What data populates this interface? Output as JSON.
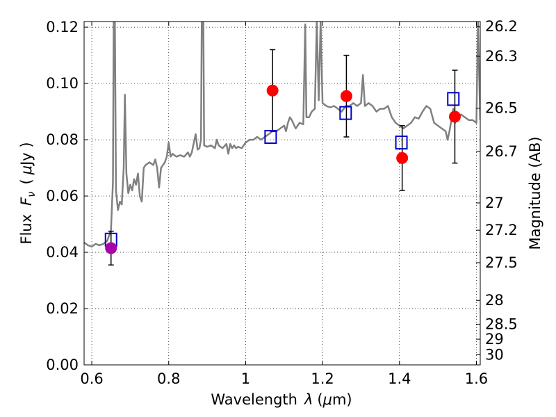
{
  "chart_data": {
    "type": "scatter",
    "title": "",
    "xlabel_prefix": "Wavelength",
    "xlabel_var": "λ",
    "xlabel_unit_open": "(",
    "xlabel_unit_mu": "μ",
    "xlabel_unit_rest": "m)",
    "ylabel_prefix": "Flux",
    "ylabel_var": "F",
    "ylabel_sub": "ν",
    "ylabel_unit_open": "(",
    "ylabel_unit_mu": "μ",
    "ylabel_unit_rest": "Jy )",
    "y2label": "Magnitude (AB)",
    "xlim": [
      0.58,
      1.61
    ],
    "ylim": [
      0.0,
      0.122
    ],
    "grid": true,
    "legend": "none",
    "xticks": [
      {
        "value": 0.6,
        "label": "0.6"
      },
      {
        "value": 0.8,
        "label": "0.8"
      },
      {
        "value": 1.0,
        "label": "1"
      },
      {
        "value": 1.2,
        "label": "1.2"
      },
      {
        "value": 1.4,
        "label": "1.4"
      },
      {
        "value": 1.6,
        "label": "1.6"
      }
    ],
    "yticks": [
      {
        "value": 0.0,
        "label": "0.00"
      },
      {
        "value": 0.02,
        "label": "0.02"
      },
      {
        "value": 0.04,
        "label": "0.04"
      },
      {
        "value": 0.06,
        "label": "0.06"
      },
      {
        "value": 0.08,
        "label": "0.08"
      },
      {
        "value": 0.1,
        "label": "0.10"
      },
      {
        "value": 0.12,
        "label": "0.12"
      }
    ],
    "y2ticks": [
      {
        "value": 26.2,
        "label": "26.2"
      },
      {
        "value": 26.3,
        "label": "26.3"
      },
      {
        "value": 26.5,
        "label": "26.5"
      },
      {
        "value": 26.7,
        "label": "26.7"
      },
      {
        "value": 27.0,
        "label": "27"
      },
      {
        "value": 27.2,
        "label": "27.2"
      },
      {
        "value": 27.5,
        "label": "27.5"
      },
      {
        "value": 28.0,
        "label": "28"
      },
      {
        "value": 28.5,
        "label": "28.5"
      },
      {
        "value": 29.0,
        "label": "29"
      },
      {
        "value": 30.0,
        "label": "30"
      }
    ],
    "series": [
      {
        "kind": "line",
        "color": "#808080",
        "points": [
          [
            0.58,
            0.0435
          ],
          [
            0.59,
            0.0425
          ],
          [
            0.6,
            0.042
          ],
          [
            0.61,
            0.043
          ],
          [
            0.62,
            0.0425
          ],
          [
            0.63,
            0.043
          ],
          [
            0.64,
            0.044
          ],
          [
            0.645,
            0.046
          ],
          [
            0.65,
            0.048
          ],
          [
            0.655,
            0.065
          ],
          [
            0.657,
            0.122
          ],
          [
            0.66,
            0.122
          ],
          [
            0.663,
            0.062
          ],
          [
            0.668,
            0.055
          ],
          [
            0.673,
            0.058
          ],
          [
            0.678,
            0.057
          ],
          [
            0.683,
            0.07
          ],
          [
            0.686,
            0.096
          ],
          [
            0.69,
            0.068
          ],
          [
            0.695,
            0.061
          ],
          [
            0.7,
            0.064
          ],
          [
            0.705,
            0.062
          ],
          [
            0.71,
            0.066
          ],
          [
            0.715,
            0.064
          ],
          [
            0.72,
            0.068
          ],
          [
            0.725,
            0.06
          ],
          [
            0.73,
            0.058
          ],
          [
            0.735,
            0.07
          ],
          [
            0.74,
            0.071
          ],
          [
            0.75,
            0.072
          ],
          [
            0.76,
            0.071
          ],
          [
            0.765,
            0.073
          ],
          [
            0.77,
            0.07
          ],
          [
            0.775,
            0.063
          ],
          [
            0.78,
            0.07
          ],
          [
            0.79,
            0.072
          ],
          [
            0.795,
            0.074
          ],
          [
            0.8,
            0.079
          ],
          [
            0.805,
            0.074
          ],
          [
            0.81,
            0.075
          ],
          [
            0.82,
            0.074
          ],
          [
            0.83,
            0.0745
          ],
          [
            0.84,
            0.074
          ],
          [
            0.85,
            0.0755
          ],
          [
            0.855,
            0.074
          ],
          [
            0.86,
            0.0755
          ],
          [
            0.87,
            0.082
          ],
          [
            0.875,
            0.0765
          ],
          [
            0.88,
            0.077
          ],
          [
            0.884,
            0.08
          ],
          [
            0.886,
            0.122
          ],
          [
            0.89,
            0.122
          ],
          [
            0.892,
            0.078
          ],
          [
            0.9,
            0.0775
          ],
          [
            0.91,
            0.078
          ],
          [
            0.92,
            0.077
          ],
          [
            0.925,
            0.08
          ],
          [
            0.93,
            0.078
          ],
          [
            0.94,
            0.077
          ],
          [
            0.95,
            0.0785
          ],
          [
            0.955,
            0.075
          ],
          [
            0.96,
            0.0785
          ],
          [
            0.965,
            0.077
          ],
          [
            0.97,
            0.078
          ],
          [
            0.975,
            0.077
          ],
          [
            0.98,
            0.0775
          ],
          [
            0.99,
            0.077
          ],
          [
            1.0,
            0.079
          ],
          [
            1.01,
            0.08
          ],
          [
            1.02,
            0.08
          ],
          [
            1.03,
            0.081
          ],
          [
            1.04,
            0.08
          ],
          [
            1.05,
            0.081
          ],
          [
            1.06,
            0.082
          ],
          [
            1.07,
            0.083
          ],
          [
            1.08,
            0.083
          ],
          [
            1.09,
            0.084
          ],
          [
            1.1,
            0.085
          ],
          [
            1.105,
            0.083
          ],
          [
            1.11,
            0.086
          ],
          [
            1.115,
            0.088
          ],
          [
            1.12,
            0.087
          ],
          [
            1.13,
            0.084
          ],
          [
            1.14,
            0.086
          ],
          [
            1.15,
            0.0855
          ],
          [
            1.155,
            0.121
          ],
          [
            1.158,
            0.088
          ],
          [
            1.165,
            0.088
          ],
          [
            1.172,
            0.09
          ],
          [
            1.18,
            0.091
          ],
          [
            1.185,
            0.122
          ],
          [
            1.19,
            0.094
          ],
          [
            1.195,
            0.122
          ],
          [
            1.2,
            0.093
          ],
          [
            1.21,
            0.092
          ],
          [
            1.22,
            0.0915
          ],
          [
            1.23,
            0.092
          ],
          [
            1.24,
            0.091
          ],
          [
            1.25,
            0.09
          ],
          [
            1.26,
            0.092
          ],
          [
            1.27,
            0.092
          ],
          [
            1.28,
            0.093
          ],
          [
            1.29,
            0.092
          ],
          [
            1.3,
            0.093
          ],
          [
            1.305,
            0.103
          ],
          [
            1.31,
            0.092
          ],
          [
            1.32,
            0.093
          ],
          [
            1.33,
            0.092
          ],
          [
            1.34,
            0.09
          ],
          [
            1.35,
            0.091
          ],
          [
            1.36,
            0.091
          ],
          [
            1.37,
            0.092
          ],
          [
            1.38,
            0.088
          ],
          [
            1.39,
            0.086
          ],
          [
            1.4,
            0.085
          ],
          [
            1.41,
            0.084
          ],
          [
            1.42,
            0.085
          ],
          [
            1.43,
            0.086
          ],
          [
            1.44,
            0.088
          ],
          [
            1.45,
            0.0875
          ],
          [
            1.46,
            0.09
          ],
          [
            1.47,
            0.092
          ],
          [
            1.48,
            0.091
          ],
          [
            1.49,
            0.086
          ],
          [
            1.5,
            0.085
          ],
          [
            1.51,
            0.084
          ],
          [
            1.52,
            0.083
          ],
          [
            1.525,
            0.08
          ],
          [
            1.53,
            0.083
          ],
          [
            1.54,
            0.091
          ],
          [
            1.545,
            0.086
          ],
          [
            1.55,
            0.088
          ],
          [
            1.56,
            0.089
          ],
          [
            1.57,
            0.088
          ],
          [
            1.58,
            0.087
          ],
          [
            1.59,
            0.087
          ],
          [
            1.6,
            0.086
          ],
          [
            1.604,
            0.122
          ],
          [
            1.61,
            0.087
          ]
        ]
      },
      {
        "kind": "squares",
        "color": "#0000cc",
        "points": [
          [
            0.65,
            0.0445
          ],
          [
            1.065,
            0.081
          ],
          [
            1.26,
            0.0895
          ],
          [
            1.405,
            0.079
          ],
          [
            1.54,
            0.0945
          ]
        ]
      },
      {
        "kind": "circles",
        "points": [
          {
            "x": 0.65,
            "y": 0.0415,
            "err": 0.006,
            "color": "#aa00aa"
          },
          {
            "x": 1.07,
            "y": 0.0975,
            "err": 0.0145,
            "color": "#ff0000"
          },
          {
            "x": 1.262,
            "y": 0.0955,
            "err": 0.0145,
            "color": "#ff0000"
          },
          {
            "x": 1.407,
            "y": 0.0735,
            "err": 0.0115,
            "color": "#ff0000"
          },
          {
            "x": 1.544,
            "y": 0.0882,
            "err": 0.0165,
            "color": "#ff0000"
          }
        ]
      }
    ]
  }
}
